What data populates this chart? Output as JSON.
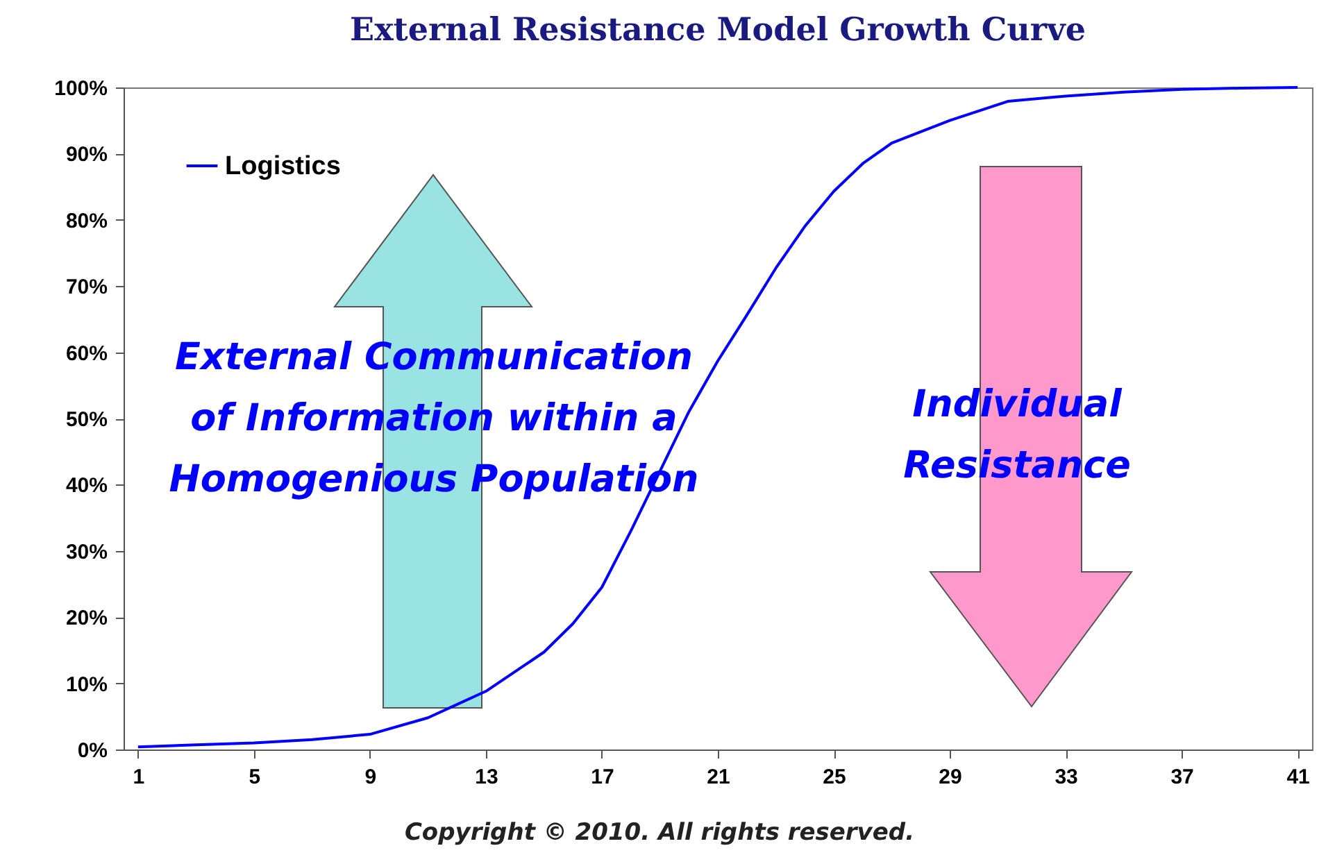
{
  "chart_data": {
    "type": "line",
    "title": "External Resistance Model Growth Curve",
    "annotations": [
      "External Communication of Information within a Homogenious Population",
      "Individual Resistance",
      "Copyright © 2010. All rights reserved."
    ],
    "x": [
      1,
      3,
      5,
      7,
      9,
      11,
      13,
      15,
      16,
      17,
      18,
      19,
      20,
      21,
      22,
      23,
      24,
      25,
      26,
      27,
      29,
      31,
      33,
      35,
      37,
      39,
      41
    ],
    "series": [
      {
        "name": "Logistics",
        "color": "#0000ff",
        "values": [
          0.4,
          0.7,
          1.0,
          1.5,
          2.3,
          4.8,
          8.8,
          14.7,
          19,
          24.5,
          33,
          42,
          51,
          58.7,
          65.6,
          72.7,
          79,
          84.3,
          88.5,
          91.6,
          95,
          97.9,
          98.7,
          99.3,
          99.7,
          99.9,
          100
        ]
      }
    ],
    "xlim": [
      0.5,
      41.5
    ],
    "xticks": [
      1,
      5,
      9,
      13,
      17,
      21,
      25,
      29,
      33,
      37,
      41
    ],
    "ylim": [
      0,
      100
    ],
    "yticks": [
      {
        "value": 0,
        "label": "0%"
      },
      {
        "value": 10,
        "label": "10%"
      },
      {
        "value": 20,
        "label": "20%"
      },
      {
        "value": 30,
        "label": "30%"
      },
      {
        "value": 40,
        "label": "40%"
      },
      {
        "value": 50,
        "label": "50%"
      },
      {
        "value": 60,
        "label": "60%"
      },
      {
        "value": 70,
        "label": "70%"
      },
      {
        "value": 80,
        "label": "80%"
      },
      {
        "value": 90,
        "label": "90%"
      },
      {
        "value": 100,
        "label": "100%"
      }
    ],
    "grid": false,
    "legend": "top left",
    "marker": "none",
    "line_style": "solid"
  }
}
